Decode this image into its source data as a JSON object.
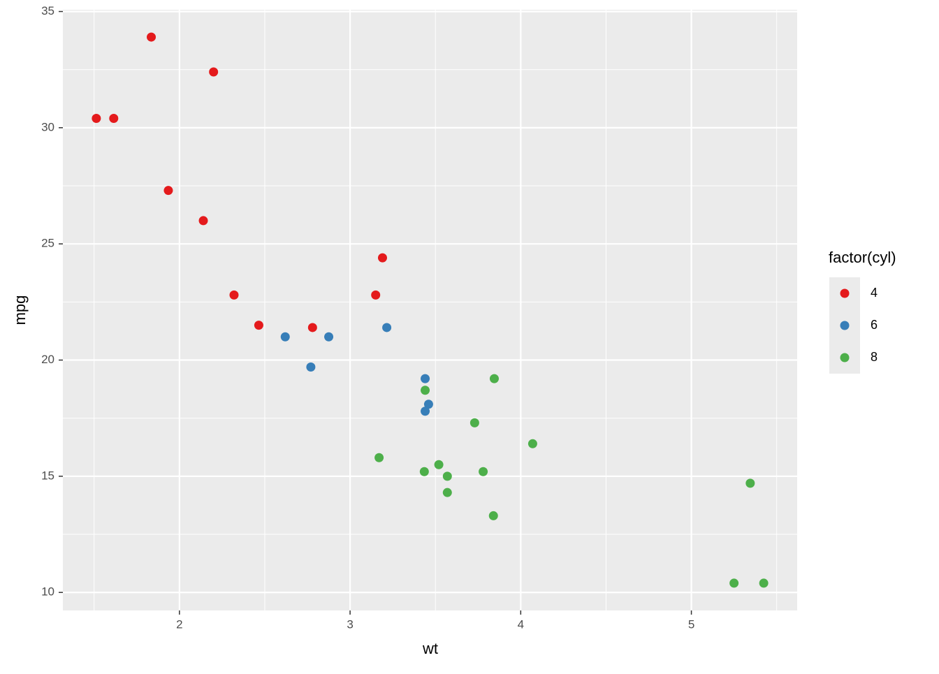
{
  "chart_data": {
    "type": "scatter",
    "x_label": "wt",
    "y_label": "mpg",
    "legend_title": "factor(cyl)",
    "legend_position": "right",
    "xlim": [
      1.317,
      5.62
    ],
    "ylim": [
      9.225,
      35.075
    ],
    "xticks": [
      2,
      3,
      4,
      5
    ],
    "yticks": [
      10,
      15,
      20,
      25,
      30,
      35
    ],
    "grid": true,
    "series": [
      {
        "name": "4",
        "color": "#E41A1C",
        "x": [
          2.32,
          3.19,
          3.15,
          2.2,
          1.615,
          1.835,
          2.465,
          1.935,
          2.14,
          1.513,
          2.78
        ],
        "values": [
          22.8,
          24.4,
          22.8,
          32.4,
          30.4,
          33.9,
          21.5,
          27.3,
          26.0,
          30.4,
          21.4
        ]
      },
      {
        "name": "6",
        "color": "#377EB8",
        "x": [
          2.62,
          2.875,
          3.215,
          3.46,
          3.44,
          3.44,
          2.77
        ],
        "values": [
          21.0,
          21.0,
          21.4,
          18.1,
          19.2,
          17.8,
          19.7
        ]
      },
      {
        "name": "8",
        "color": "#4DAF4A",
        "x": [
          3.44,
          3.57,
          4.07,
          3.73,
          3.78,
          5.25,
          5.424,
          5.345,
          3.52,
          3.435,
          3.84,
          3.845,
          3.17,
          3.57
        ],
        "values": [
          18.7,
          14.3,
          16.4,
          17.3,
          15.2,
          10.4,
          10.4,
          14.7,
          15.5,
          15.2,
          13.3,
          19.2,
          15.8,
          15.0
        ]
      }
    ]
  }
}
